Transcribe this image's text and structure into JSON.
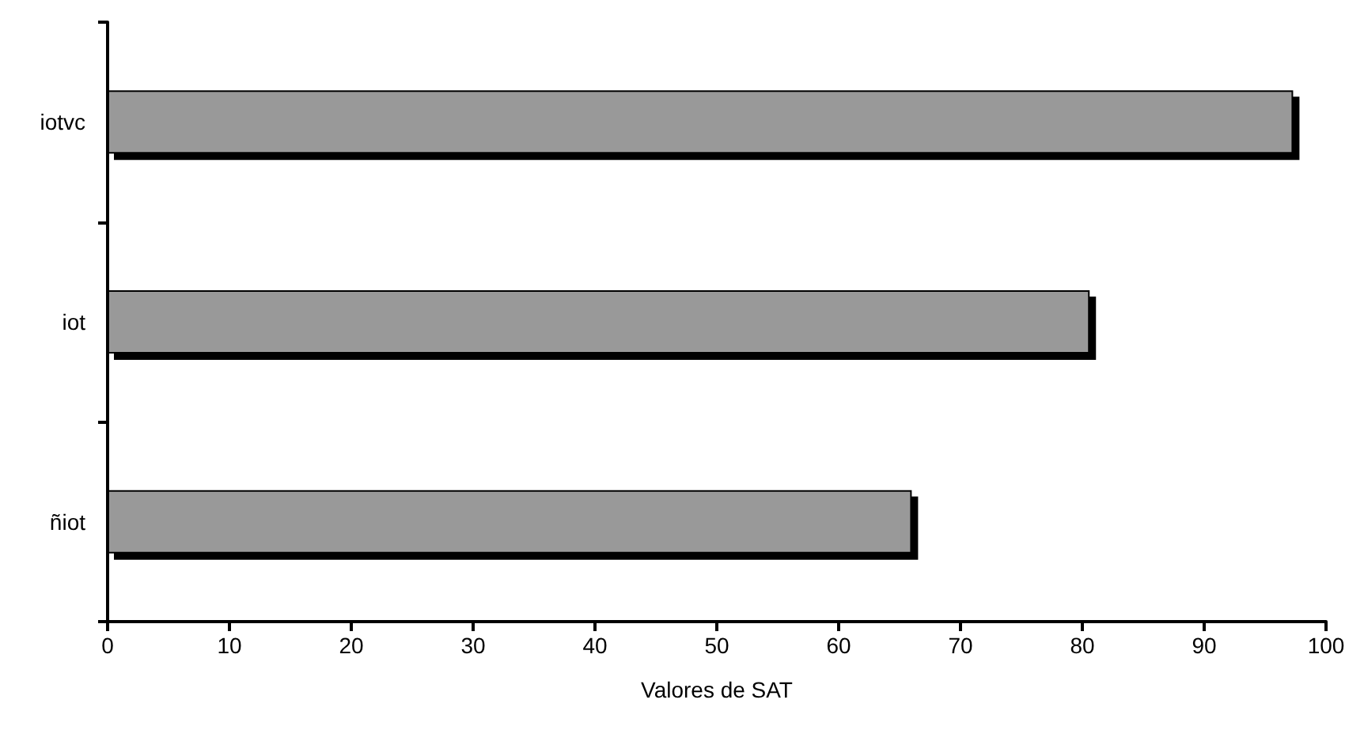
{
  "chart_data": {
    "type": "bar",
    "orientation": "horizontal",
    "xlabel": "Valores de SAT",
    "categories": [
      "iotvc",
      "iot",
      "ñiot"
    ],
    "values": [
      97.3,
      80.6,
      66
    ],
    "color": "#999999",
    "xlim": [
      0,
      100
    ],
    "xticks": [
      0,
      10,
      20,
      30,
      40,
      50,
      60,
      70,
      80,
      90,
      100
    ],
    "grid": false
  }
}
